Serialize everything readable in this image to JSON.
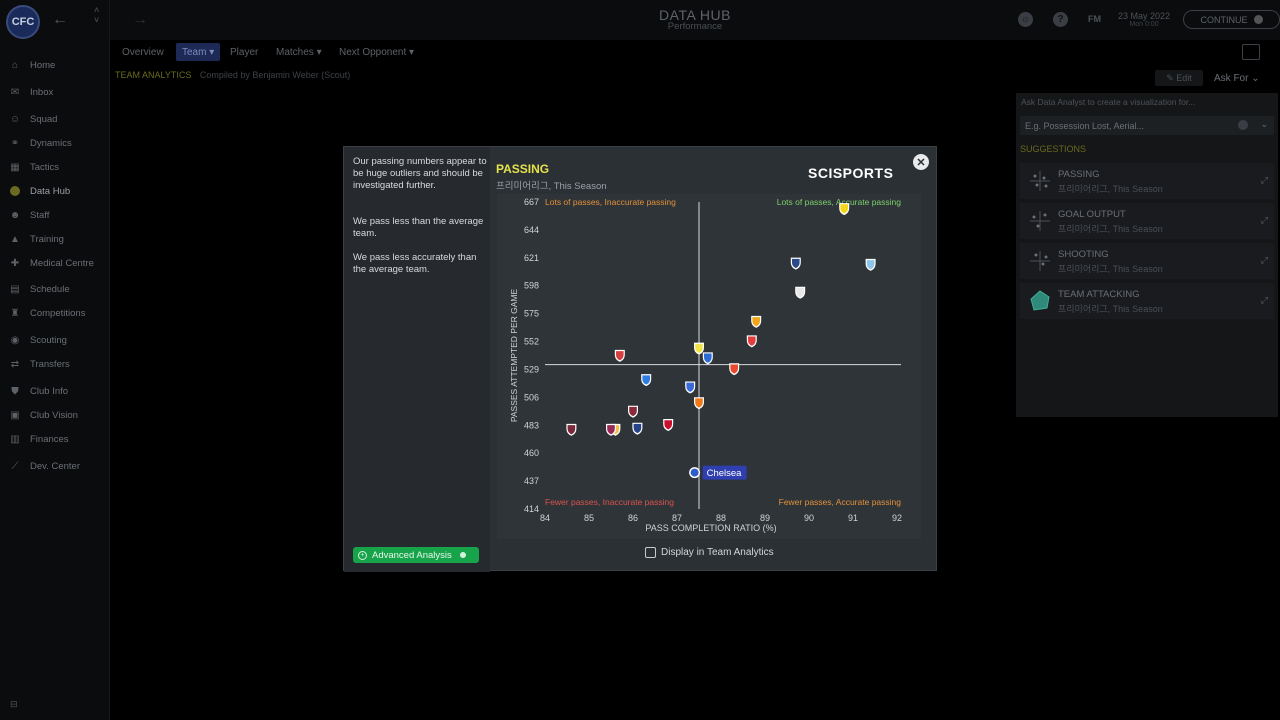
{
  "header": {
    "title": "DATA HUB",
    "subtitle": "Performance",
    "fm_label": "FM",
    "date": "23 May 2022",
    "time": "Mon 0:00",
    "continue_label": "CONTINUE"
  },
  "sidebar": {
    "badge": "CFC",
    "items": [
      {
        "label": "Home",
        "icon": "home-icon",
        "glyph": "⌂"
      },
      {
        "label": "Inbox",
        "icon": "inbox-icon",
        "glyph": "✉"
      },
      {
        "label": "Squad",
        "icon": "squad-icon",
        "glyph": "☺"
      },
      {
        "label": "Dynamics",
        "icon": "dynamics-icon",
        "glyph": "⚭"
      },
      {
        "label": "Tactics",
        "icon": "tactics-icon",
        "glyph": "▦"
      },
      {
        "label": "Data Hub",
        "icon": "data-hub-icon",
        "glyph": "●"
      },
      {
        "label": "Staff",
        "icon": "staff-icon",
        "glyph": "☻"
      },
      {
        "label": "Training",
        "icon": "training-icon",
        "glyph": "▲"
      },
      {
        "label": "Medical Centre",
        "icon": "medical-icon",
        "glyph": "✚"
      },
      {
        "label": "Schedule",
        "icon": "schedule-icon",
        "glyph": "▤"
      },
      {
        "label": "Competitions",
        "icon": "trophy-icon",
        "glyph": "♜"
      },
      {
        "label": "Scouting",
        "icon": "scouting-icon",
        "glyph": "◉"
      },
      {
        "label": "Transfers",
        "icon": "transfers-icon",
        "glyph": "⇄"
      },
      {
        "label": "Club Info",
        "icon": "shield-icon",
        "glyph": "⛊"
      },
      {
        "label": "Club Vision",
        "icon": "vision-icon",
        "glyph": "▣"
      },
      {
        "label": "Finances",
        "icon": "finances-icon",
        "glyph": "▥"
      },
      {
        "label": "Dev. Center",
        "icon": "dev-center-icon",
        "glyph": "⟋"
      }
    ],
    "bottom": "⊟"
  },
  "subnav": {
    "tabs": [
      "Overview",
      "Team ▾",
      "Player",
      "Matches ▾",
      "Next Opponent ▾"
    ]
  },
  "page": {
    "section": "TEAM ANALYTICS",
    "compiled": "Compiled by Benjamin Weber (Scout)",
    "edit": "✎ Edit",
    "ask_for": "Ask For ⌄"
  },
  "right_panel": {
    "prompt": "Ask Data Analyst to create a visualization for...",
    "input_placeholder": "E.g. Possession Lost, Aerial...",
    "suggestions_title": "SUGGESTIONS",
    "suggestions": [
      {
        "name": "PASSING",
        "league": "프리미어리그, This Season"
      },
      {
        "name": "GOAL OUTPUT",
        "league": "프리미어리그, This Season"
      },
      {
        "name": "SHOOTING",
        "league": "프리미어리그, This Season"
      },
      {
        "name": "TEAM ATTACKING",
        "league": "프리미어리그, This Season"
      }
    ]
  },
  "modal": {
    "insights": [
      "Our passing numbers appear to be huge outliers and should be investigated further.",
      "We pass less than the average team.",
      "We pass less accurately than the average team."
    ],
    "title": "PASSING",
    "subtitle": "프리미어리그, This Season",
    "brand": "SCISPORTS",
    "advanced_label": "Advanced Analysis",
    "display_label": "Display in Team Analytics"
  },
  "chart_data": {
    "type": "scatter",
    "xlabel": "PASS COMPLETION RATIO (%)",
    "ylabel": "PASSES ATTEMPTED PER GAME",
    "xlim": [
      84,
      92
    ],
    "ylim": [
      414,
      667
    ],
    "xticks": [
      84,
      85,
      86,
      87,
      88,
      89,
      90,
      91,
      92
    ],
    "yticks": [
      414,
      437,
      460,
      483,
      506,
      529,
      552,
      575,
      598,
      621,
      644,
      667
    ],
    "avg_x": 87.5,
    "avg_y": 533,
    "quadrant_labels": {
      "top_left": "Lots of passes, Inaccurate passing",
      "top_right": "Lots of passes, Accurate passing",
      "bottom_left": "Fewer passes, Inaccurate passing",
      "bottom_right": "Fewer passes, Accurate passing"
    },
    "highlight_label": "Chelsea",
    "points": [
      {
        "x": 87.4,
        "y": 444,
        "color": "#2f5cc8",
        "highlight": true
      },
      {
        "x": 90.8,
        "y": 662,
        "color": "#f5d518"
      },
      {
        "x": 91.4,
        "y": 616,
        "color": "#8cc5ea"
      },
      {
        "x": 89.7,
        "y": 617,
        "color": "#2a4a8a"
      },
      {
        "x": 89.8,
        "y": 593,
        "color": "#e8e8e8"
      },
      {
        "x": 88.8,
        "y": 569,
        "color": "#f2a71b"
      },
      {
        "x": 88.7,
        "y": 553,
        "color": "#e43d3d"
      },
      {
        "x": 87.5,
        "y": 547,
        "color": "#f1e44a"
      },
      {
        "x": 87.7,
        "y": 539,
        "color": "#2d6bd6"
      },
      {
        "x": 88.3,
        "y": 530,
        "color": "#e84b2b"
      },
      {
        "x": 85.7,
        "y": 541,
        "color": "#d44040"
      },
      {
        "x": 86.3,
        "y": 521,
        "color": "#2f7de0"
      },
      {
        "x": 87.3,
        "y": 515,
        "color": "#3a6ad8"
      },
      {
        "x": 87.5,
        "y": 502,
        "color": "#ef7a16"
      },
      {
        "x": 86.0,
        "y": 495,
        "color": "#8a2a3a"
      },
      {
        "x": 86.8,
        "y": 484,
        "color": "#c8102e"
      },
      {
        "x": 86.1,
        "y": 481,
        "color": "#274488"
      },
      {
        "x": 85.6,
        "y": 480,
        "color": "#f0c24c"
      },
      {
        "x": 85.5,
        "y": 480,
        "color": "#9a2a55"
      },
      {
        "x": 84.6,
        "y": 480,
        "color": "#7a2a3a"
      }
    ]
  },
  "colors": {
    "accent_yellow": "#e6e34a",
    "advanced_green": "#17a34a",
    "quadrant_orange": "#e3913a",
    "quadrant_green": "#7bd06a",
    "quadrant_red": "#d9534f",
    "highlight_blue": "#2f3fb0"
  }
}
